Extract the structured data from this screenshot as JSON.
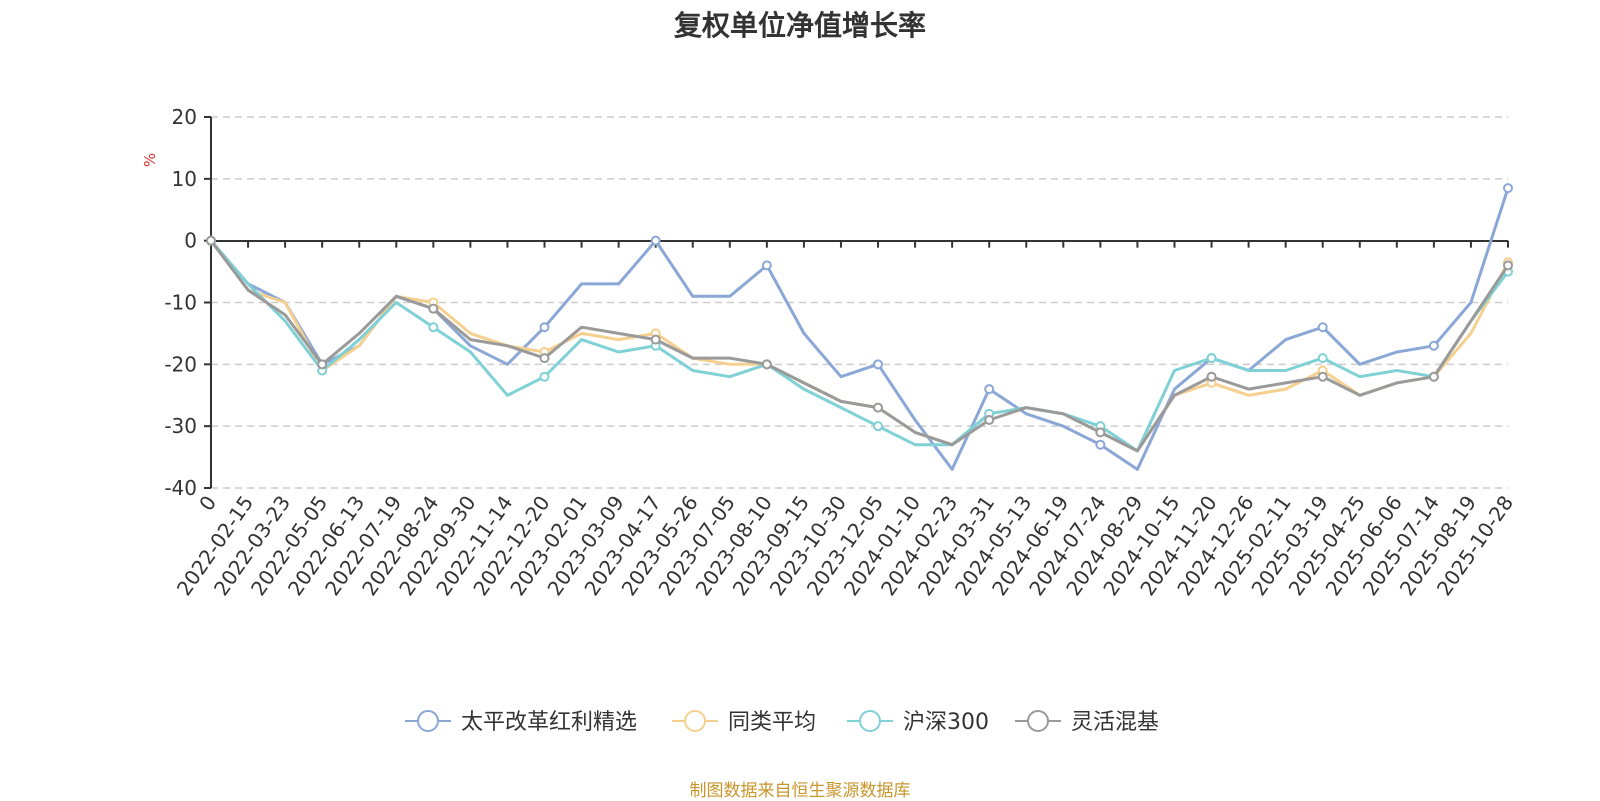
{
  "chart_data": {
    "type": "line",
    "title": "复权单位净值增长率",
    "ylabel": "%",
    "ylim": [
      -40,
      20
    ],
    "yticks": [
      20,
      10,
      0,
      -10,
      -20,
      -30,
      -40
    ],
    "grid": true,
    "legend_position": "bottom-center",
    "x_tick_labels": [
      "0",
      "2022-02-15",
      "2022-03-23",
      "2022-05-05",
      "2022-06-13",
      "2022-07-19",
      "2022-08-24",
      "2022-09-30",
      "2022-11-14",
      "2022-12-20",
      "2023-02-01",
      "2023-03-09",
      "2023-04-17",
      "2023-05-26",
      "2023-07-05",
      "2023-08-10",
      "2023-09-15",
      "2023-10-30",
      "2023-12-05",
      "2024-01-10",
      "2024-02-23",
      "2024-03-31",
      "2024-05-13",
      "2024-06-19",
      "2024-07-24",
      "2024-08-29",
      "2024-10-15",
      "2024-11-20",
      "2024-12-26",
      "2025-02-11",
      "2025-03-19",
      "2025-04-25",
      "2025-06-06",
      "2025-07-14",
      "2025-08-19",
      "2025-10-28"
    ],
    "series": [
      {
        "name": "太平改革红利精选",
        "color": "#8aa7d6",
        "values": [
          0,
          -7,
          -10,
          -20,
          -17,
          -9,
          -11,
          -17,
          -20,
          -14,
          -7,
          -7,
          0,
          -9,
          -9,
          -4,
          -15,
          -22,
          -20,
          -29,
          -37,
          -24,
          -28,
          -30,
          -33,
          -37,
          -24,
          -19,
          -21,
          -16,
          -14,
          -20,
          -18,
          -17,
          -10,
          8.5
        ]
      },
      {
        "name": "同类平均",
        "color": "#f5d08e",
        "values": [
          0,
          -8,
          -10,
          -21,
          -17,
          -9,
          -10,
          -15,
          -17,
          -18,
          -15,
          -16,
          -15,
          -19,
          -20,
          -20,
          -23,
          -26,
          -27,
          -31,
          -33,
          -28,
          -27,
          -28,
          -31,
          -34,
          -25,
          -23,
          -25,
          -24,
          -21,
          -25,
          -23,
          -22,
          -15,
          -3.5
        ]
      },
      {
        "name": "沪深300",
        "color": "#7fd1d6",
        "values": [
          0,
          -7,
          -13,
          -21,
          -16,
          -10,
          -14,
          -18,
          -25,
          -22,
          -16,
          -18,
          -17,
          -21,
          -22,
          -20,
          -24,
          -27,
          -30,
          -33,
          -33,
          -28,
          -27,
          -28,
          -30,
          -34,
          -21,
          -19,
          -21,
          -21,
          -19,
          -22,
          -21,
          -22,
          -13,
          -5
        ]
      },
      {
        "name": "灵活混基",
        "color": "#9a9a9a",
        "values": [
          0,
          -8,
          -12,
          -20,
          -15,
          -9,
          -11,
          -16,
          -17,
          -19,
          -14,
          -15,
          -16,
          -19,
          -19,
          -20,
          -23,
          -26,
          -27,
          -31,
          -33,
          -29,
          -27,
          -28,
          -31,
          -34,
          -25,
          -22,
          -24,
          -23,
          -22,
          -25,
          -23,
          -22,
          -13,
          -4
        ]
      }
    ]
  },
  "source": "制图数据来自恒生聚源数据库"
}
